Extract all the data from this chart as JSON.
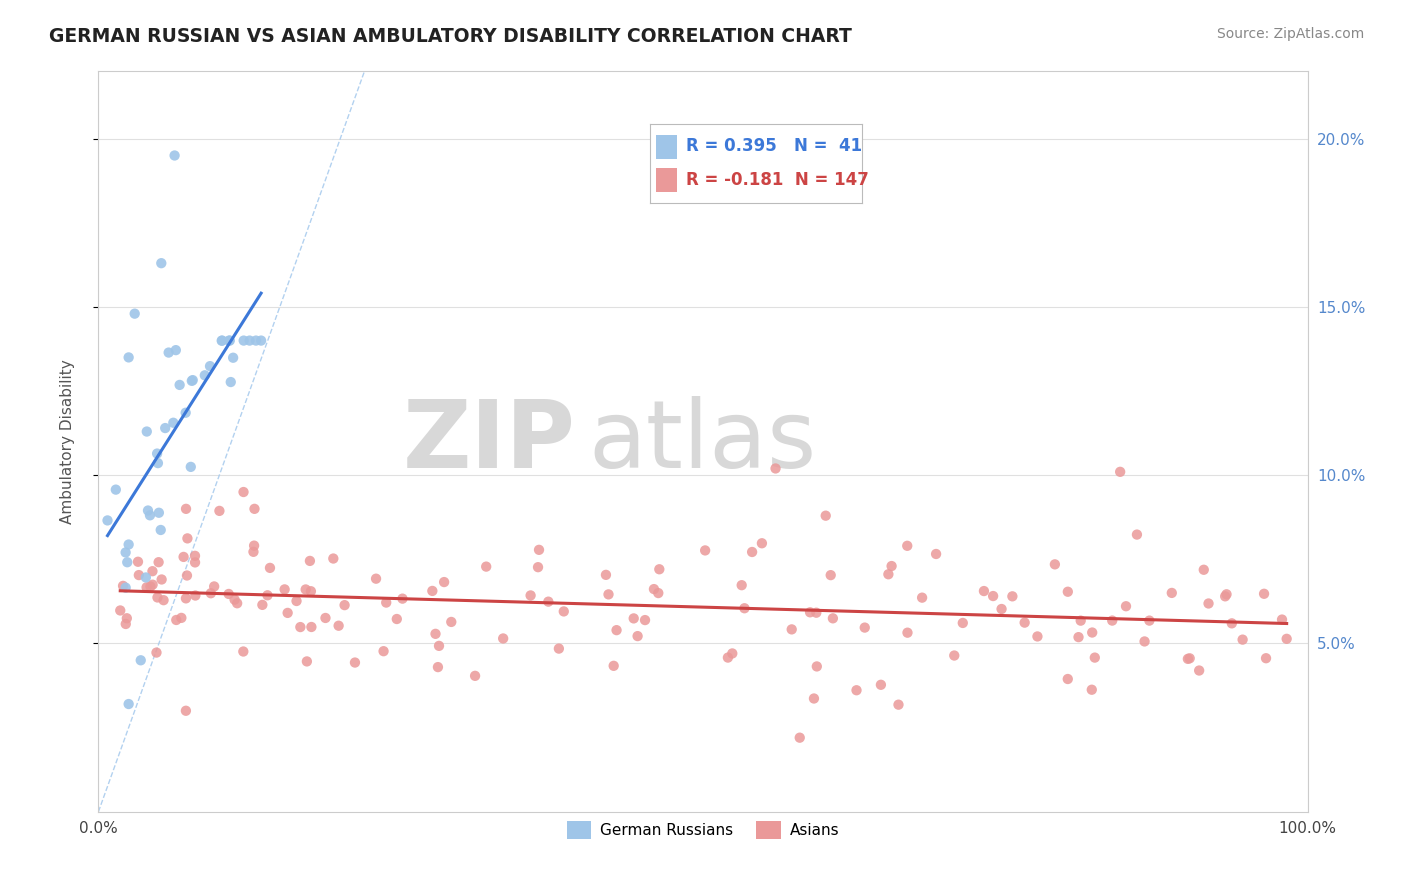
{
  "title": "GERMAN RUSSIAN VS ASIAN AMBULATORY DISABILITY CORRELATION CHART",
  "source": "Source: ZipAtlas.com",
  "ylabel": "Ambulatory Disability",
  "legend_label1": "German Russians",
  "legend_label2": "Asians",
  "r1": "0.395",
  "n1": "41",
  "r2": "-0.181",
  "n2": "147",
  "color_blue": "#9fc5e8",
  "color_pink": "#ea9999",
  "color_trendline_blue": "#3c78d8",
  "color_trendline_pink": "#cc4444",
  "color_diag": "#aaccee",
  "background_color": "#ffffff",
  "grid_color": "#e0e0e0",
  "xlim": [
    0.0,
    1.0
  ],
  "ylim": [
    0.0,
    0.22
  ],
  "ytick_vals": [
    0.05,
    0.1,
    0.15,
    0.2
  ],
  "ytick_labels": [
    "5.0%",
    "10.0%",
    "15.0%",
    "20.0%"
  ],
  "right_tick_color": "#5588cc"
}
